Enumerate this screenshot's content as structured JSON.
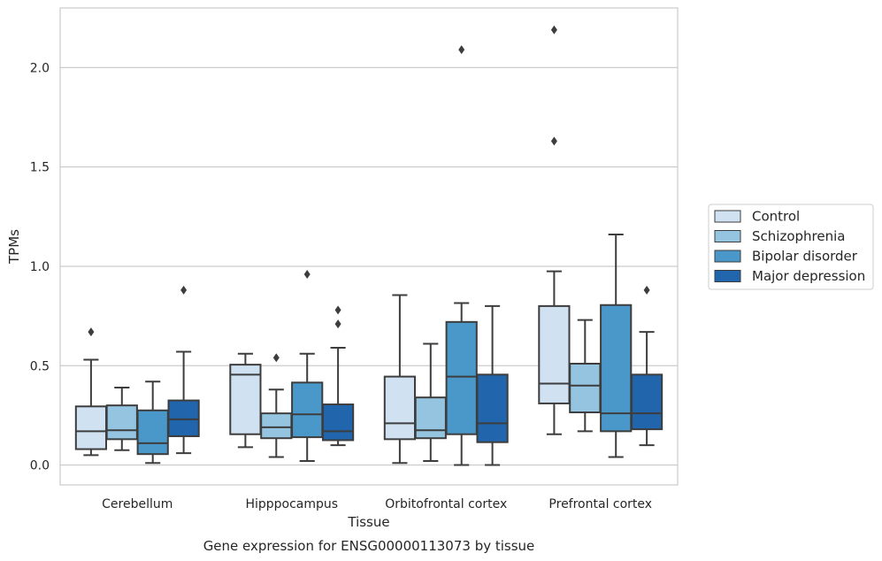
{
  "chart_data": {
    "type": "box",
    "title": "",
    "caption": "Gene expression for ENSG00000113073 by tissue",
    "xlabel": "Tissue",
    "ylabel": "TPMs",
    "ylim": [
      -0.1,
      2.3
    ],
    "yticks": [
      0.0,
      0.5,
      1.0,
      1.5,
      2.0
    ],
    "ytick_labels": [
      "0.0",
      "0.5",
      "1.0",
      "1.5",
      "2.0"
    ],
    "grid": "horizontal",
    "legend_position": "right",
    "categories": [
      "Cerebellum",
      "Hipppocampus",
      "Orbitofrontal cortex",
      "Prefrontal cortex"
    ],
    "series": [
      {
        "name": "Control",
        "color": "#d0e1f2",
        "boxes": [
          {
            "whislo": 0.05,
            "q1": 0.08,
            "med": 0.17,
            "q3": 0.295,
            "whishi": 0.53,
            "fliers": [
              0.67
            ]
          },
          {
            "whislo": 0.09,
            "q1": 0.155,
            "med": 0.455,
            "q3": 0.505,
            "whishi": 0.56,
            "fliers": []
          },
          {
            "whislo": 0.01,
            "q1": 0.13,
            "med": 0.21,
            "q3": 0.445,
            "whishi": 0.855,
            "fliers": []
          },
          {
            "whislo": 0.155,
            "q1": 0.31,
            "med": 0.41,
            "q3": 0.8,
            "whishi": 0.975,
            "fliers": [
              1.63,
              2.19
            ]
          }
        ]
      },
      {
        "name": "Schizophrenia",
        "color": "#94c4df",
        "boxes": [
          {
            "whislo": 0.075,
            "q1": 0.13,
            "med": 0.175,
            "q3": 0.3,
            "whishi": 0.39,
            "fliers": []
          },
          {
            "whislo": 0.04,
            "q1": 0.135,
            "med": 0.19,
            "q3": 0.26,
            "whishi": 0.38,
            "fliers": [
              0.54
            ]
          },
          {
            "whislo": 0.02,
            "q1": 0.135,
            "med": 0.175,
            "q3": 0.34,
            "whishi": 0.61,
            "fliers": []
          },
          {
            "whislo": 0.17,
            "q1": 0.265,
            "med": 0.4,
            "q3": 0.51,
            "whishi": 0.73,
            "fliers": []
          }
        ]
      },
      {
        "name": "Bipolar disorder",
        "color": "#4a98c9",
        "boxes": [
          {
            "whislo": 0.01,
            "q1": 0.055,
            "med": 0.11,
            "q3": 0.275,
            "whishi": 0.42,
            "fliers": []
          },
          {
            "whislo": 0.02,
            "q1": 0.14,
            "med": 0.255,
            "q3": 0.415,
            "whishi": 0.56,
            "fliers": [
              0.96
            ]
          },
          {
            "whislo": 0.0,
            "q1": 0.155,
            "med": 0.445,
            "q3": 0.72,
            "whishi": 0.815,
            "fliers": [
              2.09
            ]
          },
          {
            "whislo": 0.04,
            "q1": 0.17,
            "med": 0.26,
            "q3": 0.805,
            "whishi": 1.16,
            "fliers": []
          }
        ]
      },
      {
        "name": "Major depression",
        "color": "#2166ac",
        "boxes": [
          {
            "whislo": 0.06,
            "q1": 0.145,
            "med": 0.23,
            "q3": 0.325,
            "whishi": 0.57,
            "fliers": [
              0.88
            ]
          },
          {
            "whislo": 0.1,
            "q1": 0.125,
            "med": 0.17,
            "q3": 0.305,
            "whishi": 0.59,
            "fliers": [
              0.71,
              0.78
            ]
          },
          {
            "whislo": 0.0,
            "q1": 0.115,
            "med": 0.21,
            "q3": 0.455,
            "whishi": 0.8,
            "fliers": []
          },
          {
            "whislo": 0.1,
            "q1": 0.18,
            "med": 0.26,
            "q3": 0.455,
            "whishi": 0.67,
            "fliers": [
              0.88
            ]
          }
        ]
      }
    ]
  }
}
